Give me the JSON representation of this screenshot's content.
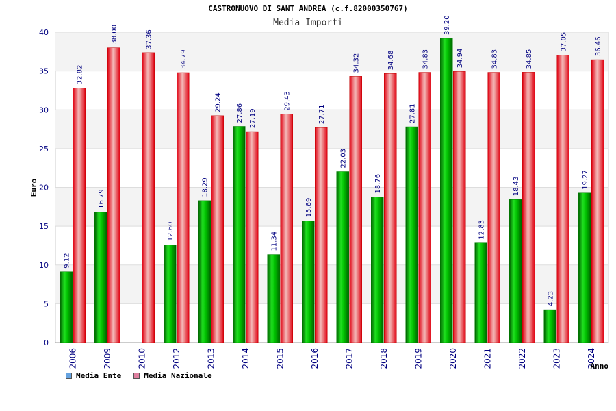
{
  "chart_data": {
    "type": "bar",
    "title": "CASTRONUOVO DI SANT ANDREA (c.f.82000350767)",
    "subtitle": "Media Importi",
    "xlabel": "Anno",
    "ylabel": "Euro",
    "ylim": [
      0,
      40
    ],
    "yticks": [
      0,
      5,
      10,
      15,
      20,
      25,
      30,
      35,
      40
    ],
    "grid": true,
    "legend_position": "bottom-left",
    "categories": [
      "2006",
      "2009",
      "2010",
      "2012",
      "2013",
      "2014",
      "2015",
      "2016",
      "2017",
      "2018",
      "2019",
      "2020",
      "2021",
      "2022",
      "2023",
      "2024"
    ],
    "series": [
      {
        "name": "Media Ente",
        "color": "#00c000",
        "legend_color": "#66a3e0",
        "values": [
          9.12,
          16.79,
          null,
          12.6,
          18.29,
          27.86,
          11.34,
          15.69,
          22.03,
          18.76,
          27.81,
          39.2,
          12.83,
          18.43,
          4.23,
          19.27
        ],
        "labels": [
          "9.12",
          "16.79",
          "",
          "12.60",
          "18.29",
          "27.86",
          "11.34",
          "15.69",
          "22.03",
          "18.76",
          "27.81",
          "39.20",
          "12.83",
          "18.43",
          "4.23",
          "19.27"
        ]
      },
      {
        "name": "Media Nazionale",
        "color": "#e00010",
        "legend_color": "#e080a0",
        "values": [
          32.82,
          38.0,
          37.36,
          34.79,
          29.24,
          27.19,
          29.43,
          27.71,
          34.32,
          34.68,
          34.83,
          34.94,
          34.83,
          34.85,
          37.05,
          36.46
        ],
        "labels": [
          "32.82",
          "38.00",
          "37.36",
          "34.79",
          "29.24",
          "27.19",
          "29.43",
          "27.71",
          "34.32",
          "34.68",
          "34.83",
          "34.94",
          "34.83",
          "34.85",
          "37.05",
          "36.46"
        ]
      }
    ]
  }
}
